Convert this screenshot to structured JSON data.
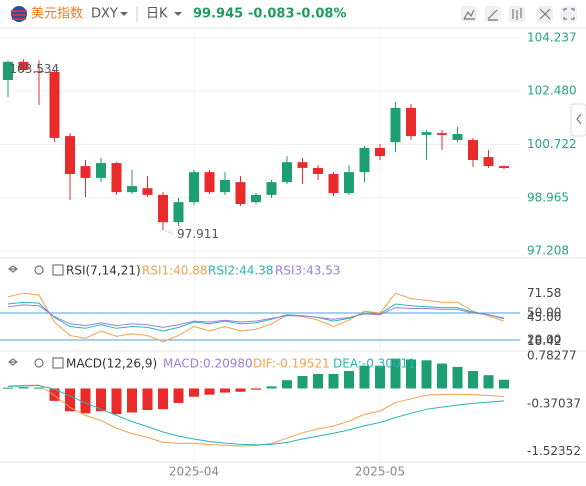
{
  "header": {
    "name": "美元指数",
    "symbol": "DXY",
    "period": "日K",
    "price": "99.945",
    "change": "-0.083",
    "change_pct": "-0.08%"
  },
  "chart_data": [
    {
      "type": "candlestick",
      "categories": [
        null,
        null,
        null,
        null,
        null,
        null,
        null,
        null,
        null,
        null,
        null,
        null,
        "2025-04",
        null,
        null,
        null,
        null,
        null,
        null,
        null,
        null,
        null,
        null,
        null,
        "2025-05",
        null,
        null,
        null,
        null,
        null,
        null,
        null,
        null
      ],
      "open": [
        102.85,
        103.45,
        103.14,
        103.12,
        101.0,
        100.01,
        99.62,
        100.11,
        99.15,
        99.28,
        99.06,
        98.16,
        98.82,
        99.81,
        99.15,
        99.48,
        98.82,
        99.06,
        99.48,
        100.14,
        99.95,
        99.75,
        99.12,
        99.81,
        100.61,
        100.8,
        101.93,
        101.04,
        101.1,
        100.87,
        100.87,
        100.31,
        100.01
      ],
      "high": [
        103.5,
        103.534,
        103.5,
        103.18,
        101.1,
        100.21,
        100.28,
        100.14,
        99.88,
        99.68,
        99.15,
        98.96,
        99.88,
        99.88,
        99.81,
        99.68,
        99.12,
        99.55,
        100.34,
        100.28,
        100.04,
        99.81,
        100.04,
        100.67,
        100.74,
        102.13,
        102.06,
        101.2,
        101.2,
        101.3,
        100.94,
        100.54,
        100.04
      ],
      "low": [
        102.29,
        103.12,
        102.03,
        100.8,
        98.89,
        98.99,
        99.48,
        99.06,
        99.09,
        98.99,
        97.911,
        98.03,
        98.72,
        99.09,
        99.06,
        98.69,
        98.76,
        98.96,
        99.42,
        99.42,
        99.55,
        99.02,
        99.06,
        99.48,
        100.21,
        100.47,
        100.87,
        100.21,
        100.54,
        100.8,
        99.98,
        99.95,
        99.91
      ],
      "close": [
        103.45,
        103.18,
        103.12,
        100.94,
        99.75,
        99.62,
        100.11,
        99.15,
        99.35,
        99.06,
        98.16,
        98.82,
        99.81,
        99.15,
        99.55,
        98.76,
        99.06,
        99.48,
        100.14,
        99.95,
        99.75,
        99.12,
        99.81,
        100.61,
        100.34,
        101.93,
        101.0,
        101.13,
        101.04,
        101.07,
        100.21,
        100.01,
        99.945
      ],
      "up_color": "#1e9e73",
      "down_color": "#ea2b2b",
      "ylim": [
        97.208,
        104.237
      ],
      "yticks": [
        104.237,
        {
          "value": 102.48,
          "label": "102.480"
        },
        100.722,
        98.965,
        97.208
      ],
      "grid": true,
      "tick_color": "#27a08c",
      "annotations": {
        "high_label": "103.534",
        "low_label": "97.911"
      }
    },
    {
      "type": "line",
      "title": "RSI(7,14,21)",
      "ylim": [
        10,
        90
      ],
      "yticks": [
        71.58,
        {
          "value": 50,
          "label": "50.00"
        },
        {
          "value": 45,
          "label": "45.00"
        },
        18.42,
        {
          "value": 20,
          "label": "20.00"
        }
      ],
      "hlines": [
        50,
        20
      ],
      "hline_color": "#4aa3df",
      "series": [
        {
          "name": "RSI1:40.88",
          "color": "#f5a04a",
          "values": [
            68,
            72,
            70,
            40,
            25,
            22,
            30,
            24,
            27,
            25,
            18,
            25,
            35,
            30,
            35,
            30,
            32,
            38,
            48,
            46,
            42,
            35,
            42,
            52,
            50,
            72,
            66,
            64,
            62,
            62,
            52,
            47,
            40.88
          ]
        },
        {
          "name": "RSI2:44.38",
          "color": "#28b5b5",
          "values": [
            60,
            62,
            61,
            45,
            35,
            33,
            37,
            33,
            35,
            34,
            30,
            34,
            40,
            38,
            41,
            38,
            39,
            43,
            48,
            47,
            45,
            41,
            44,
            50,
            49,
            60,
            58,
            57,
            56,
            56,
            51,
            48,
            44.38
          ]
        },
        {
          "name": "RSI3:43.53",
          "color": "#9b7fd4",
          "values": [
            57,
            59,
            58,
            46,
            38,
            36,
            39,
            36,
            38,
            37,
            34,
            37,
            41,
            40,
            42,
            40,
            41,
            44,
            47,
            47,
            45,
            43,
            45,
            49,
            48,
            56,
            55,
            55,
            54,
            54,
            50,
            48,
            43.53
          ]
        }
      ]
    },
    {
      "type": "macd",
      "title": "MACD(12,26,9)",
      "ylim": [
        -1.75,
        1.0
      ],
      "yticks": [
        0.78277,
        -0.37037,
        -1.52352
      ],
      "up_color": "#1e9e73",
      "down_color": "#ea2b2b",
      "series": [
        {
          "name": "MACD:0.20980",
          "color": "#9b7fd4",
          "style": "bar",
          "values": [
            0.02,
            0.03,
            0.02,
            -0.3,
            -0.55,
            -0.6,
            -0.55,
            -0.62,
            -0.58,
            -0.52,
            -0.5,
            -0.35,
            -0.2,
            -0.15,
            -0.1,
            -0.08,
            -0.03,
            0.05,
            0.2,
            0.3,
            0.35,
            0.35,
            0.42,
            0.55,
            0.55,
            0.72,
            0.7,
            0.68,
            0.6,
            0.52,
            0.42,
            0.32,
            0.2098
          ]
        },
        {
          "name": "DIF:-0.19521",
          "color": "#f5a04a",
          "style": "line",
          "values": [
            0.06,
            0.075,
            0.08,
            -0.17,
            -0.455,
            -0.65,
            -0.775,
            -0.96,
            -1.09,
            -1.18,
            -1.3,
            -1.325,
            -1.32,
            -1.355,
            -1.37,
            -1.39,
            -1.375,
            -1.325,
            -1.2,
            -1.07,
            -0.975,
            -0.905,
            -0.79,
            -0.625,
            -0.545,
            -0.34,
            -0.25,
            -0.16,
            -0.15,
            -0.14,
            -0.15,
            -0.17,
            -0.19521
          ]
        },
        {
          "name": "DEA:-0.30011",
          "color": "#28b5b5",
          "style": "line",
          "values": [
            0.05,
            0.06,
            0.07,
            -0.02,
            -0.18,
            -0.35,
            -0.5,
            -0.65,
            -0.8,
            -0.92,
            -1.05,
            -1.15,
            -1.22,
            -1.28,
            -1.32,
            -1.35,
            -1.36,
            -1.35,
            -1.3,
            -1.22,
            -1.15,
            -1.08,
            -1.0,
            -0.9,
            -0.82,
            -0.7,
            -0.6,
            -0.5,
            -0.45,
            -0.4,
            -0.36,
            -0.33,
            -0.30011
          ]
        }
      ]
    }
  ]
}
